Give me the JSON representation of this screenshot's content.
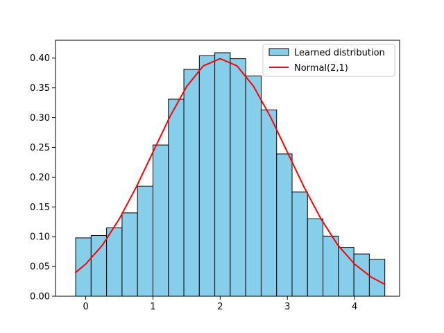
{
  "chart_data": {
    "type": "bar",
    "title": "",
    "xlabel": "",
    "ylabel": "",
    "xlim": [
      -0.45,
      4.67
    ],
    "ylim": [
      0,
      0.43
    ],
    "x_ticks": [
      0,
      1,
      2,
      3,
      4
    ],
    "y_ticks": [
      0.0,
      0.05,
      0.1,
      0.15,
      0.2,
      0.25,
      0.3,
      0.35,
      0.4
    ],
    "grid": false,
    "legend_position": "top-right",
    "series": [
      {
        "name": "Learned distribution",
        "kind": "histogram",
        "color": "#87CEEB",
        "edge_color": "#000000",
        "bins": [
          {
            "x0": -0.15,
            "x1": 0.08,
            "value": 0.098
          },
          {
            "x0": 0.08,
            "x1": 0.31,
            "value": 0.102
          },
          {
            "x0": 0.31,
            "x1": 0.54,
            "value": 0.115
          },
          {
            "x0": 0.54,
            "x1": 0.77,
            "value": 0.14
          },
          {
            "x0": 0.77,
            "x1": 1.0,
            "value": 0.185
          },
          {
            "x0": 1.0,
            "x1": 1.23,
            "value": 0.254
          },
          {
            "x0": 1.23,
            "x1": 1.46,
            "value": 0.331
          },
          {
            "x0": 1.46,
            "x1": 1.69,
            "value": 0.381
          },
          {
            "x0": 1.69,
            "x1": 1.92,
            "value": 0.404
          },
          {
            "x0": 1.92,
            "x1": 2.15,
            "value": 0.409
          },
          {
            "x0": 2.15,
            "x1": 2.38,
            "value": 0.399
          },
          {
            "x0": 2.38,
            "x1": 2.61,
            "value": 0.37
          },
          {
            "x0": 2.61,
            "x1": 2.84,
            "value": 0.313
          },
          {
            "x0": 2.84,
            "x1": 3.07,
            "value": 0.239
          },
          {
            "x0": 3.07,
            "x1": 3.3,
            "value": 0.175
          },
          {
            "x0": 3.3,
            "x1": 3.53,
            "value": 0.13
          },
          {
            "x0": 3.53,
            "x1": 3.76,
            "value": 0.101
          },
          {
            "x0": 3.76,
            "x1": 3.99,
            "value": 0.082
          },
          {
            "x0": 3.99,
            "x1": 4.22,
            "value": 0.071
          },
          {
            "x0": 4.22,
            "x1": 4.45,
            "value": 0.062
          }
        ]
      },
      {
        "name": "Normal(2,1)",
        "kind": "line",
        "color": "#FF0000",
        "x": [
          -0.15,
          0.0,
          0.25,
          0.5,
          0.75,
          1.0,
          1.25,
          1.5,
          1.75,
          2.0,
          2.25,
          2.5,
          2.75,
          3.0,
          3.25,
          3.5,
          3.75,
          4.0,
          4.25,
          4.45
        ],
        "y": [
          0.04,
          0.054,
          0.086,
          0.13,
          0.183,
          0.242,
          0.301,
          0.352,
          0.387,
          0.399,
          0.387,
          0.352,
          0.301,
          0.242,
          0.183,
          0.13,
          0.086,
          0.054,
          0.032,
          0.02
        ]
      }
    ]
  }
}
